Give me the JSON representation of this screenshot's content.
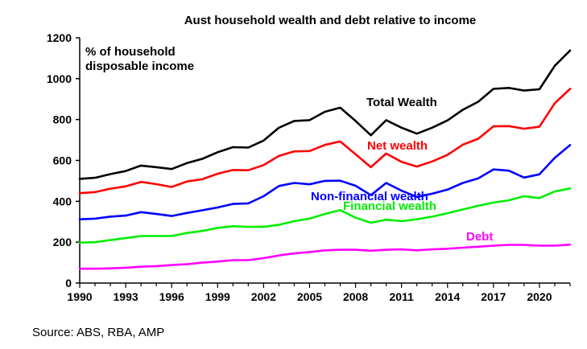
{
  "chart_data": {
    "type": "line",
    "title": "Aust household wealth and debt relative to income",
    "ylabel": "% of household disposable income",
    "ylabel_lines": [
      "% of household",
      "disposable income"
    ],
    "xlim": [
      1990,
      2022
    ],
    "ylim": [
      0,
      1200
    ],
    "x_ticks": [
      1990,
      1993,
      1996,
      1999,
      2002,
      2005,
      2008,
      2011,
      2014,
      2017,
      2020
    ],
    "y_ticks": [
      0,
      200,
      400,
      600,
      800,
      1000,
      1200
    ],
    "x": [
      1990,
      1991,
      1992,
      1993,
      1994,
      1995,
      1996,
      1997,
      1998,
      1999,
      2000,
      2001,
      2002,
      2003,
      2004,
      2005,
      2006,
      2007,
      2008,
      2009,
      2010,
      2011,
      2012,
      2013,
      2014,
      2015,
      2016,
      2017,
      2018,
      2019,
      2020,
      2021,
      2022
    ],
    "series": [
      {
        "name": "Total Wealth",
        "color": "#000000",
        "values": [
          510,
          515,
          533,
          548,
          575,
          567,
          558,
          587,
          608,
          640,
          665,
          663,
          697,
          760,
          793,
          797,
          838,
          858,
          793,
          723,
          797,
          760,
          731,
          760,
          796,
          848,
          887,
          950,
          955,
          942,
          948,
          1063,
          1138
        ]
      },
      {
        "name": "Net wealth",
        "color": "#ff0000",
        "values": [
          440,
          445,
          462,
          473,
          495,
          484,
          470,
          497,
          508,
          535,
          553,
          552,
          577,
          622,
          644,
          646,
          676,
          693,
          630,
          567,
          634,
          593,
          570,
          595,
          627,
          677,
          706,
          767,
          768,
          755,
          765,
          880,
          950
        ]
      },
      {
        "name": "Non-financial wealth",
        "color": "#0000ff",
        "values": [
          312,
          315,
          325,
          330,
          347,
          338,
          328,
          343,
          356,
          370,
          387,
          390,
          425,
          475,
          490,
          483,
          500,
          501,
          476,
          430,
          490,
          452,
          421,
          437,
          457,
          490,
          512,
          556,
          550,
          516,
          532,
          613,
          675
        ]
      },
      {
        "name": "Financial wealth",
        "color": "#00ee00",
        "values": [
          198,
          200,
          210,
          220,
          230,
          230,
          230,
          245,
          255,
          270,
          278,
          275,
          275,
          285,
          303,
          315,
          338,
          357,
          320,
          295,
          310,
          303,
          312,
          325,
          342,
          360,
          378,
          394,
          405,
          425,
          416,
          448,
          463
        ]
      },
      {
        "name": "Debt",
        "color": "#ff00ff",
        "values": [
          70,
          70,
          72,
          75,
          80,
          83,
          88,
          92,
          100,
          105,
          112,
          112,
          122,
          135,
          145,
          152,
          160,
          163,
          163,
          158,
          163,
          165,
          160,
          165,
          168,
          173,
          178,
          183,
          187,
          187,
          183,
          183,
          188
        ]
      }
    ],
    "labels": [
      {
        "text": "Total Wealth",
        "color": "#000000"
      },
      {
        "text": "Net wealth",
        "color": "#ff0000"
      },
      {
        "text": "Non-financial wealth",
        "color": "#0000ff"
      },
      {
        "text": "Financial wealth",
        "color": "#00ee00"
      },
      {
        "text": "Debt",
        "color": "#ff00ff"
      }
    ],
    "grid": false
  },
  "source": "Source: ABS, RBA, AMP"
}
